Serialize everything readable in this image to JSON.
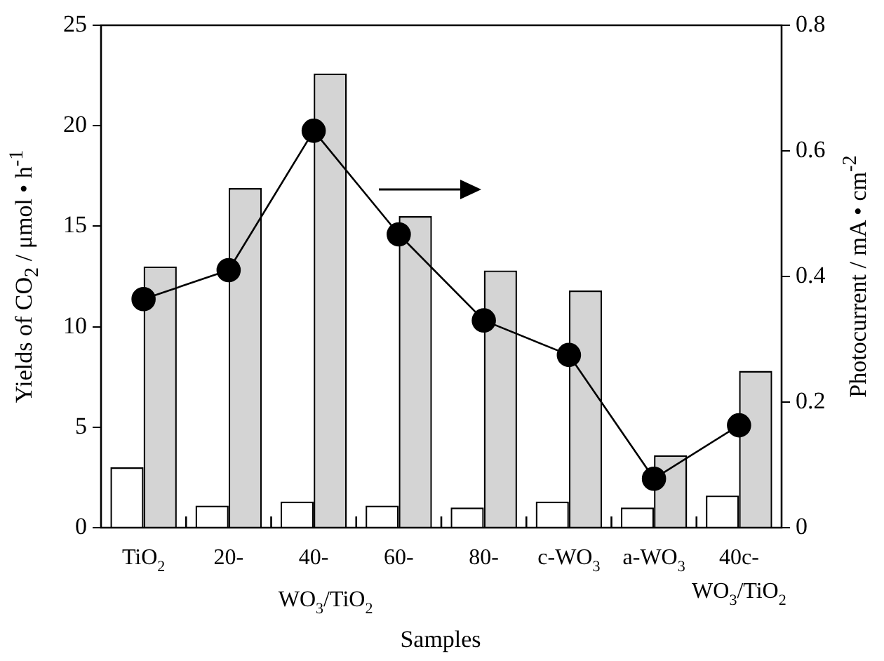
{
  "chart_data": {
    "type": "bar",
    "xlabel": "Samples",
    "ylabel": "Yields of CO$_{2}$ / μmol • h$^{-1}$",
    "y2label": "Photocurrent / mA • cm$^{-2}$",
    "categories": [
      "TiO$_{2}$",
      "20-",
      "40-",
      "60-",
      "80-",
      "c-WO$_{3}$",
      "a-WO$_{3}$",
      "40c-WO$_{3}$/TiO$_{2}$"
    ],
    "series": [
      {
        "color": "#ffffff",
        "values": [
          3.0,
          1.1,
          1.3,
          1.1,
          1.0,
          1.3,
          1.0,
          1.6
        ]
      },
      {
        "color": "#d4d4d4",
        "values": [
          13.0,
          16.9,
          22.6,
          15.5,
          12.8,
          11.8,
          3.6,
          7.8
        ]
      },
      {
        "type": "line",
        "axis": "y2",
        "color": "#000000",
        "values": [
          0.364,
          0.41,
          0.632,
          0.467,
          0.33,
          0.275,
          0.078,
          0.163
        ]
      }
    ],
    "ylim": [
      0,
      25
    ],
    "yticks": [
      0,
      5,
      10,
      15,
      20,
      25
    ],
    "y2lim": [
      0,
      0.8
    ],
    "y2ticks": [
      0,
      0.2,
      0.4,
      0.6,
      0.8
    ],
    "annotations": [
      "WO$_{3}$/TiO$_{2}$"
    ],
    "grid": false,
    "legend": false,
    "marker": "circle",
    "line_style": "solid"
  }
}
